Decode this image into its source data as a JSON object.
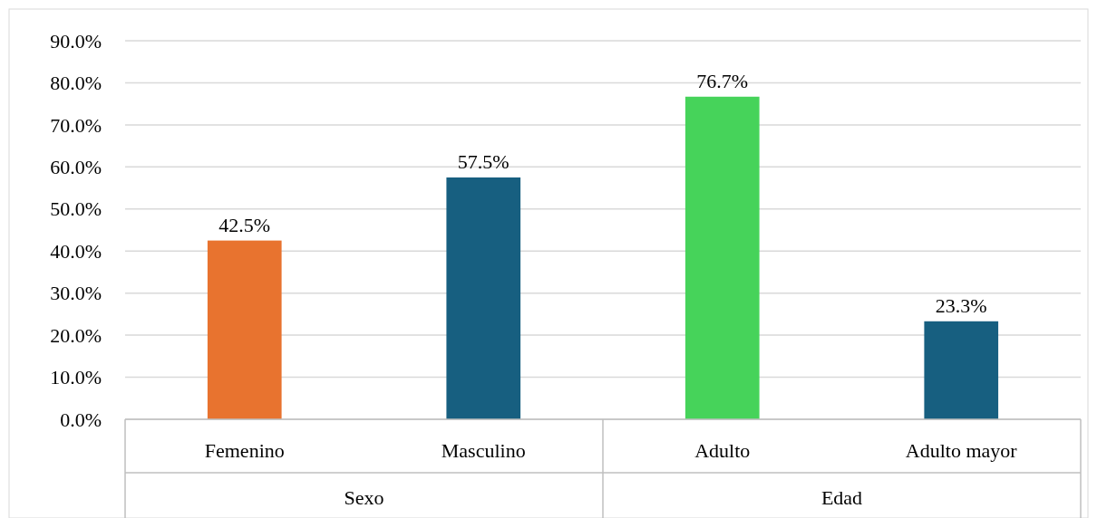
{
  "chart_data": {
    "type": "bar",
    "categories": [
      "Femenino",
      "Masculino",
      "Adulto",
      "Adulto mayor"
    ],
    "values": [
      42.5,
      57.5,
      76.7,
      23.3
    ],
    "colors": [
      "#e8732f",
      "#175f80",
      "#46d35a",
      "#175f80"
    ],
    "value_labels": [
      "42.5%",
      "57.5%",
      "76.7%",
      "23.3%"
    ],
    "ylim": [
      0,
      90
    ],
    "yticks": [
      {
        "value": 0,
        "label": "0.0%"
      },
      {
        "value": 10,
        "label": "10.0%"
      },
      {
        "value": 20,
        "label": "20.0%"
      },
      {
        "value": 30,
        "label": "30.0%"
      },
      {
        "value": 40,
        "label": "40.0%"
      },
      {
        "value": 50,
        "label": "50.0%"
      },
      {
        "value": 60,
        "label": "60.0%"
      },
      {
        "value": 70,
        "label": "70.0%"
      },
      {
        "value": 80,
        "label": "80.0%"
      },
      {
        "value": 90,
        "label": "90.0%"
      }
    ],
    "grid": "y",
    "annotations": [
      "Sexo",
      "Edad"
    ]
  }
}
